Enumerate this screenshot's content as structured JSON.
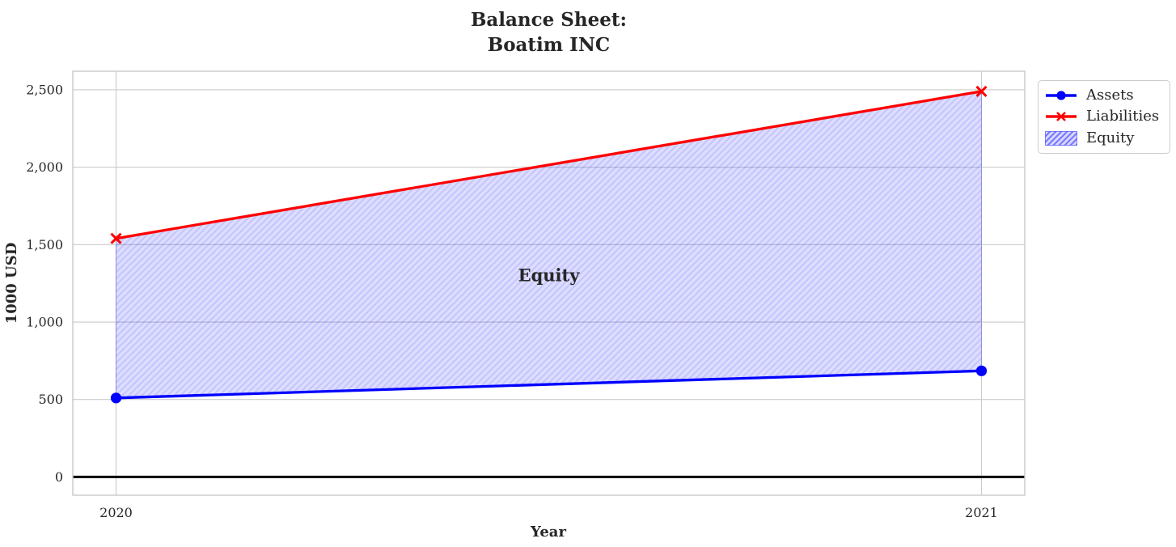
{
  "title": {
    "line1": "Balance Sheet:",
    "line2": "Boatim INC"
  },
  "chart_data": {
    "type": "line",
    "title": "Balance Sheet:\nBoatim INC",
    "xlabel": "Year",
    "ylabel": "1000 USD",
    "x": [
      2020,
      2021
    ],
    "series": [
      {
        "name": "Assets",
        "values": [
          510,
          685
        ],
        "color": "#0000ff",
        "marker": "circle",
        "line_width": 3.3
      },
      {
        "name": "Liabilities",
        "values": [
          1540,
          2490
        ],
        "color": "#ff0000",
        "marker": "x",
        "line_width": 3.3
      }
    ],
    "fill_between": {
      "name": "Equity",
      "lower_series": "Assets",
      "upper_series": "Liabilities",
      "hatch": "//"
    },
    "annotation": {
      "text": "Equity",
      "x": 2020.5,
      "y": 1300,
      "color": "#ff0000"
    },
    "x_ticks": [
      {
        "v": 2020,
        "label": "2020"
      },
      {
        "v": 2021,
        "label": "2021"
      }
    ],
    "y_ticks": [
      {
        "v": 0,
        "label": "0"
      },
      {
        "v": 500,
        "label": "500"
      },
      {
        "v": 1000,
        "label": "1,000"
      },
      {
        "v": 1500,
        "label": "1,500"
      },
      {
        "v": 2000,
        "label": "2,000"
      },
      {
        "v": 2500,
        "label": "2,500"
      }
    ],
    "xlim": [
      2019.95,
      2021.05
    ],
    "ylim": [
      -118,
      2620
    ],
    "grid": true,
    "zero_line": {
      "value": 0,
      "color": "#000000",
      "width": 3
    },
    "legend_position": "top-right-outside"
  },
  "legend": {
    "items": [
      {
        "label": "Assets",
        "swatch": "blue-line-circle-marker"
      },
      {
        "label": "Liabilities",
        "swatch": "red-line-x-marker"
      },
      {
        "label": "Equity",
        "swatch": "hatched-patch"
      }
    ]
  },
  "colors": {
    "assets": "#0000ff",
    "liabilities": "#ff0000",
    "equity_fill": "rgba(0,0,255,0.13)",
    "equity_hatch": "rgba(0,0,255,0.10)",
    "grid": "#cbcbcb",
    "spine": "#c9c9c9",
    "text": "#262626",
    "annotation": "#ff0000",
    "zero_line": "#000000"
  }
}
